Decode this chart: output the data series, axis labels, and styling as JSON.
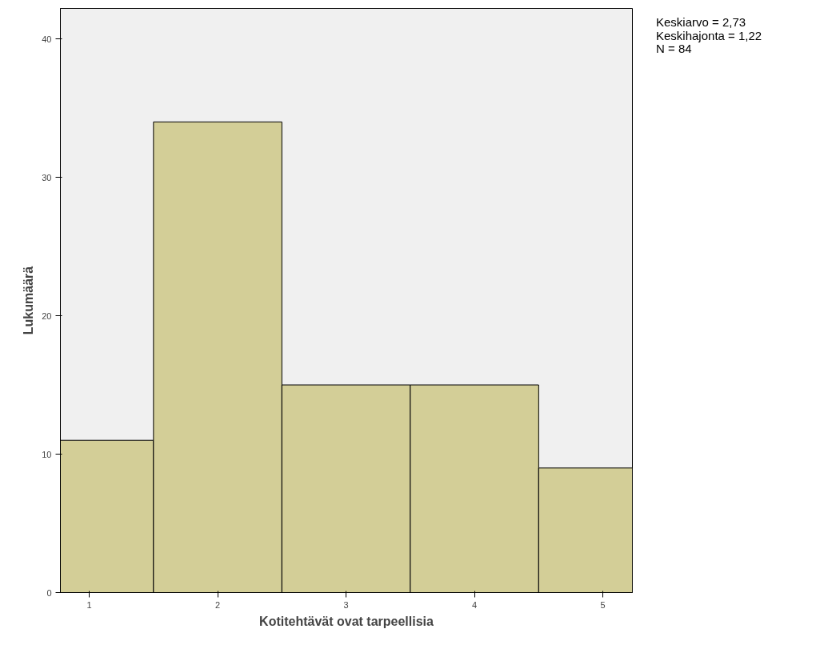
{
  "chart_data": {
    "type": "histogram",
    "xlabel": "Kotitehtävät ovat tarpeellisia",
    "ylabel": "Lukumäärä",
    "bins": [
      0.775,
      1.5,
      2.5,
      3.5,
      4.5,
      5.23
    ],
    "values": [
      11,
      34,
      15,
      15,
      9
    ],
    "color": "#d3ce97",
    "xlim": [
      0.775,
      5.23
    ],
    "xticks": [
      1,
      2,
      3,
      4,
      5
    ],
    "ylim": [
      0,
      42.2
    ],
    "yticks": [
      0,
      10,
      20,
      30,
      40
    ],
    "grid": false,
    "annotations": [
      "Keskiarvo = 2,73",
      "Keskihajonta = 1,22",
      "N = 84"
    ]
  }
}
